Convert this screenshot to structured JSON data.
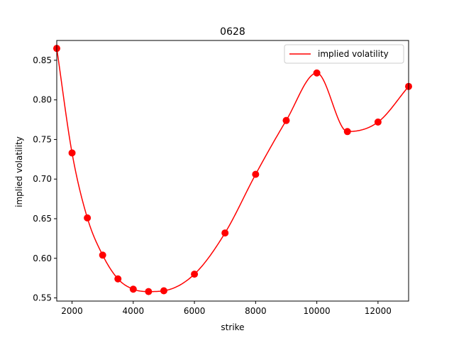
{
  "chart_data": {
    "type": "line",
    "title": "0628",
    "xlabel": "strike",
    "ylabel": "implied volatility",
    "xlim": [
      1500,
      13000
    ],
    "ylim": [
      0.546,
      0.875
    ],
    "xticks": [
      2000,
      4000,
      6000,
      8000,
      10000,
      12000
    ],
    "xtick_labels": [
      "2000",
      "4000",
      "6000",
      "8000",
      "10000",
      "12000"
    ],
    "yticks": [
      0.55,
      0.6,
      0.65,
      0.7,
      0.75,
      0.8,
      0.85
    ],
    "ytick_labels": [
      "0.55",
      "0.60",
      "0.65",
      "0.70",
      "0.75",
      "0.80",
      "0.85"
    ],
    "grid": false,
    "legend_position": "top-right",
    "series": [
      {
        "name": "implied volatility",
        "color": "#ff0000",
        "style": "line",
        "x": [
          1500,
          2000,
          2500,
          3000,
          3500,
          4000,
          4500,
          5000,
          6000,
          7000,
          8000,
          9000,
          10000,
          11000,
          12000,
          13000
        ],
        "y": [
          0.865,
          0.733,
          0.651,
          0.604,
          0.574,
          0.561,
          0.558,
          0.559,
          0.58,
          0.632,
          0.706,
          0.774,
          0.834,
          0.76,
          0.772,
          0.817
        ]
      },
      {
        "color": "#ff0000",
        "style": "markers",
        "x": [
          1500,
          2000,
          2500,
          3000,
          3500,
          4000,
          4500,
          5000,
          6000,
          7000,
          8000,
          9000,
          10000,
          11000,
          12000,
          13000
        ],
        "y": [
          0.865,
          0.733,
          0.651,
          0.604,
          0.574,
          0.561,
          0.558,
          0.559,
          0.58,
          0.632,
          0.706,
          0.774,
          0.834,
          0.76,
          0.772,
          0.817
        ]
      }
    ]
  }
}
